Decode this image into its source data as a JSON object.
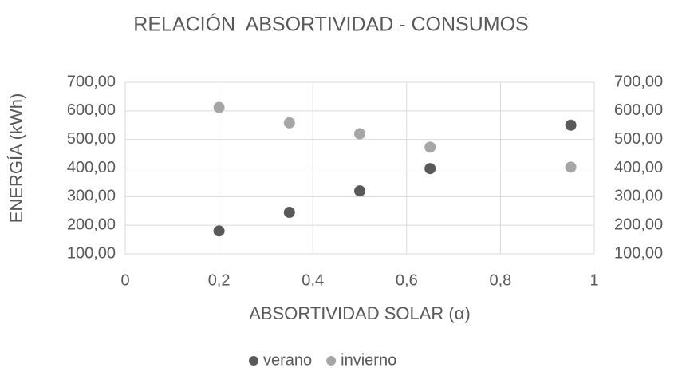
{
  "chart_data": {
    "type": "scatter",
    "title": "RELACIÓN  ABSORTIVIDAD - CONSUMOS",
    "x_label": "ABSORTIVIDAD SOLAR (α)",
    "y_label": "ENERGÍA (kWh)",
    "series": [
      {
        "name": "verano",
        "color": "#595959",
        "x": [
          0.2,
          0.35,
          0.5,
          0.65,
          0.95
        ],
        "values": [
          180,
          245,
          320,
          398,
          550
        ]
      },
      {
        "name": "invierno",
        "color": "#a6a6a6",
        "x": [
          0.2,
          0.35,
          0.5,
          0.65,
          0.95
        ],
        "values": [
          612,
          558,
          520,
          473,
          403
        ]
      }
    ],
    "xlim": [
      0,
      1
    ],
    "xticks": [
      0,
      {
        "value": 0.2,
        "label": "0,2"
      },
      {
        "value": 0.4,
        "label": "0,4"
      },
      {
        "value": 0.6,
        "label": "0,6"
      },
      {
        "value": 0.8,
        "label": "0,8"
      },
      1
    ],
    "ylim": [
      100,
      700
    ],
    "yticks": [
      {
        "value": 100,
        "label": "100,00"
      },
      {
        "value": 200,
        "label": "200,00"
      },
      {
        "value": 300,
        "label": "300,00"
      },
      {
        "value": 400,
        "label": "400,00"
      },
      {
        "value": 500,
        "label": "500,00"
      },
      {
        "value": 600,
        "label": "600,00"
      },
      {
        "value": 700,
        "label": "700,00"
      }
    ],
    "y2lim": [
      100,
      700
    ],
    "y2ticks": [
      {
        "value": 100,
        "label": "100,00"
      },
      {
        "value": 200,
        "label": "200,00"
      },
      {
        "value": 300,
        "label": "300,00"
      },
      {
        "value": 400,
        "label": "400,00"
      },
      {
        "value": 500,
        "label": "500,00"
      },
      {
        "value": 600,
        "label": "600,00"
      },
      {
        "value": 700,
        "label": "700,00"
      }
    ],
    "grid": true,
    "legend": "bottom"
  }
}
